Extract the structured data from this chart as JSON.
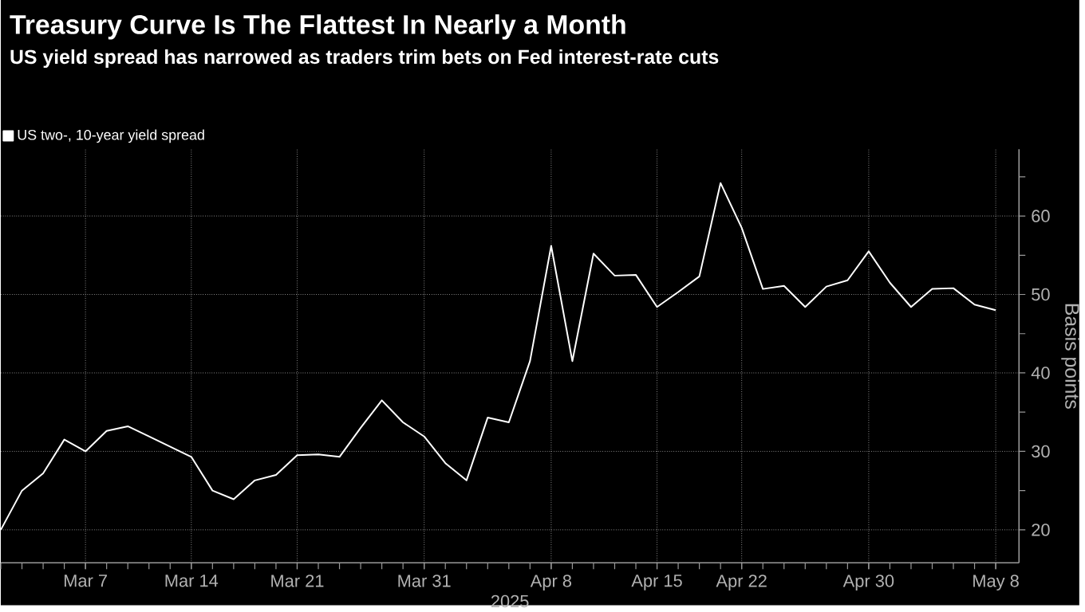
{
  "chart_data": {
    "type": "line",
    "title": "Treasury Curve Is The Flattest In Nearly a Month",
    "subtitle": "US yield spread has narrowed as traders trim bets on Fed interest-rate cuts",
    "xlabel": "2025",
    "ylabel": "Basis points",
    "categories": [
      null,
      null,
      null,
      null,
      "Mar 7",
      null,
      null,
      null,
      null,
      "Mar 14",
      null,
      null,
      null,
      null,
      "Mar 21",
      null,
      null,
      null,
      null,
      null,
      "Mar 31",
      null,
      null,
      null,
      null,
      null,
      "Apr 8",
      null,
      null,
      null,
      null,
      "Apr 15",
      null,
      null,
      null,
      "Apr 22",
      null,
      null,
      null,
      null,
      null,
      "Apr 30",
      null,
      null,
      null,
      null,
      null,
      "May 8"
    ],
    "series": [
      {
        "name": "US two-, 10-year yield spread",
        "color": "#ffffff",
        "values": [
          20.0,
          25.0,
          27.2,
          31.5,
          30.0,
          32.6,
          33.2,
          31.9,
          30.6,
          29.3,
          25.0,
          23.9,
          26.3,
          27.0,
          29.5,
          29.6,
          29.3,
          33.0,
          36.5,
          33.7,
          31.9,
          28.5,
          26.3,
          34.3,
          33.7,
          41.5,
          56.2,
          41.5,
          55.2,
          52.4,
          52.5,
          48.4,
          50.3,
          52.3,
          64.2,
          58.5,
          50.7,
          51.1,
          48.4,
          51.0,
          51.8,
          55.5,
          51.5,
          48.4,
          50.7,
          50.8,
          48.7,
          48.0
        ]
      }
    ],
    "ylim": [
      15.8,
      68.5
    ],
    "yticks": [
      20,
      {
        "value": 25,
        "label": null
      },
      30,
      {
        "value": 35,
        "label": null
      },
      40,
      {
        "value": 45,
        "label": null
      },
      50,
      {
        "value": 55,
        "label": null
      },
      60,
      {
        "value": 65,
        "label": null
      }
    ],
    "grid": true,
    "legend": "top left",
    "marker": "none",
    "line_style": "solid"
  }
}
